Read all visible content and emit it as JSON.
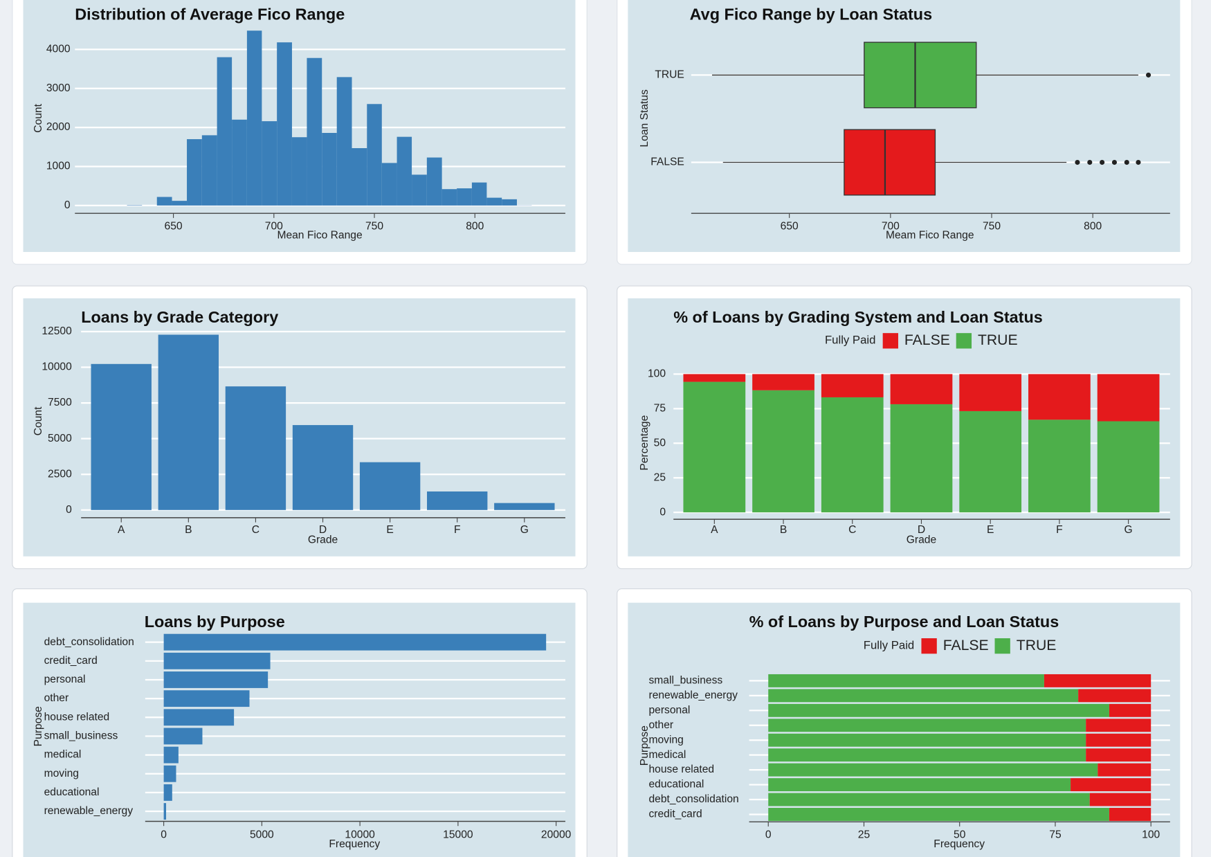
{
  "chart_data": [
    {
      "type": "histogram",
      "title": "Distribution of Average Fico Range",
      "x_label": "Mean Fico Range",
      "y_label": "Count",
      "bins": [
        626.9,
        634.4,
        641.8,
        649.3,
        656.7,
        664.2,
        671.7,
        679.1,
        686.6,
        694.0,
        701.5,
        709.0,
        716.4,
        723.9,
        731.3,
        738.8,
        746.3,
        753.7,
        761.2,
        768.6,
        776.1,
        783.6,
        791.0,
        798.5,
        805.9,
        813.4,
        820.9,
        828.3
      ],
      "counts": [
        10,
        0,
        220,
        120,
        1700,
        1800,
        3800,
        2200,
        4480,
        2160,
        4180,
        1750,
        3780,
        1860,
        3290,
        1470,
        2600,
        1090,
        1760,
        790,
        1230,
        420,
        440,
        590,
        200,
        160,
        5
      ],
      "color": "#3a7fb9",
      "xlim": [
        601,
        845
      ],
      "xticks": [
        650,
        700,
        750,
        800
      ],
      "ylim": [
        -200,
        4550
      ],
      "yticks": [
        0,
        1000,
        2000,
        3000,
        4000
      ],
      "grid": true
    },
    {
      "type": "boxplot",
      "orientation": "horizontal",
      "title": "Avg Fico Range by Loan Status",
      "x_label": "Meam Fico Range",
      "y_label": "Loan Status",
      "boxes": [
        {
          "name": "TRUE",
          "color": "#4daf4a",
          "whisker_low": 611.8,
          "q1": 687.0,
          "median": 712.2,
          "q3": 742.4,
          "whisker_high": 822.5,
          "outliers": [
            827.5
          ]
        },
        {
          "name": "FALSE",
          "color": "#e41a1c",
          "whisker_low": 617.2,
          "q1": 677.1,
          "median": 697.3,
          "q3": 722.1,
          "whisker_high": 787.0,
          "outliers": [
            792.4,
            798.5,
            804.6,
            810.7,
            816.8,
            822.5
          ]
        }
      ],
      "xlim": [
        601.5,
        838.2
      ],
      "xticks": [
        650,
        700,
        750,
        800
      ],
      "grid": true
    },
    {
      "type": "bar",
      "title": "Loans by Grade Category",
      "x_label": "Grade",
      "y_label": "Count",
      "categories": [
        "A",
        "B",
        "C",
        "D",
        "E",
        "F",
        "G"
      ],
      "values": [
        10230,
        12280,
        8660,
        5950,
        3350,
        1300,
        490
      ],
      "color": "#3a7fb9",
      "ylim": [
        -540,
        12800
      ],
      "yticks": [
        0,
        2500,
        5000,
        7500,
        10000,
        12500
      ],
      "grid": true
    },
    {
      "type": "stacked_bar",
      "title": "% of Loans by Grading System and Loan Status",
      "x_label": "Grade",
      "y_label": "Percentage",
      "legend_title": "Fully Paid",
      "legend": "top",
      "categories": [
        "A",
        "B",
        "C",
        "D",
        "E",
        "F",
        "G"
      ],
      "series": [
        {
          "name": "FALSE",
          "color": "#e41a1c",
          "values": [
            5.6,
            11.7,
            16.8,
            21.8,
            26.8,
            33.0,
            34.1
          ]
        },
        {
          "name": "TRUE",
          "color": "#4daf4a",
          "values": [
            94.4,
            88.3,
            83.2,
            78.2,
            73.2,
            67.0,
            65.9
          ]
        }
      ],
      "ylim": [
        -5,
        103
      ],
      "yticks": [
        0,
        25,
        50,
        75,
        100
      ],
      "grid": true
    },
    {
      "type": "bar",
      "orientation": "horizontal",
      "title": "Loans by Purpose",
      "x_label": "Frequency",
      "y_label": "Purpose",
      "categories": [
        "debt_consolidation",
        "credit_card",
        "personal",
        "other",
        "house related",
        "small_business",
        "medical",
        "moving",
        "educational",
        "renewable_energy"
      ],
      "values": [
        19490,
        5430,
        5310,
        4370,
        3580,
        1970,
        750,
        630,
        430,
        120
      ],
      "color": "#3a7fb9",
      "xlim": [
        -945,
        20470
      ],
      "xticks": [
        0,
        5000,
        10000,
        15000,
        20000
      ],
      "grid": true
    },
    {
      "type": "stacked_bar",
      "orientation": "horizontal",
      "title": "% of Loans by Purpose and Loan Status",
      "x_label": "Frequency",
      "y_label": "Purpose",
      "legend_title": "Fully Paid",
      "legend": "top",
      "categories": [
        "small_business",
        "renewable_energy",
        "personal",
        "other",
        "moving",
        "medical",
        "house related",
        "educational",
        "debt_consolidation",
        "credit_card"
      ],
      "series": [
        {
          "name": "FALSE",
          "color": "#e41a1c",
          "values": [
            27.9,
            19.0,
            10.9,
            17.0,
            17.0,
            17.0,
            13.9,
            21.0,
            16.0,
            10.9
          ]
        },
        {
          "name": "TRUE",
          "color": "#4daf4a",
          "values": [
            72.1,
            81.0,
            89.1,
            83.0,
            83.0,
            83.0,
            86.1,
            79.0,
            84.0,
            89.1
          ]
        }
      ],
      "xlim": [
        -5,
        105
      ],
      "xticks": [
        0,
        25,
        50,
        75,
        100
      ],
      "grid": true
    }
  ]
}
